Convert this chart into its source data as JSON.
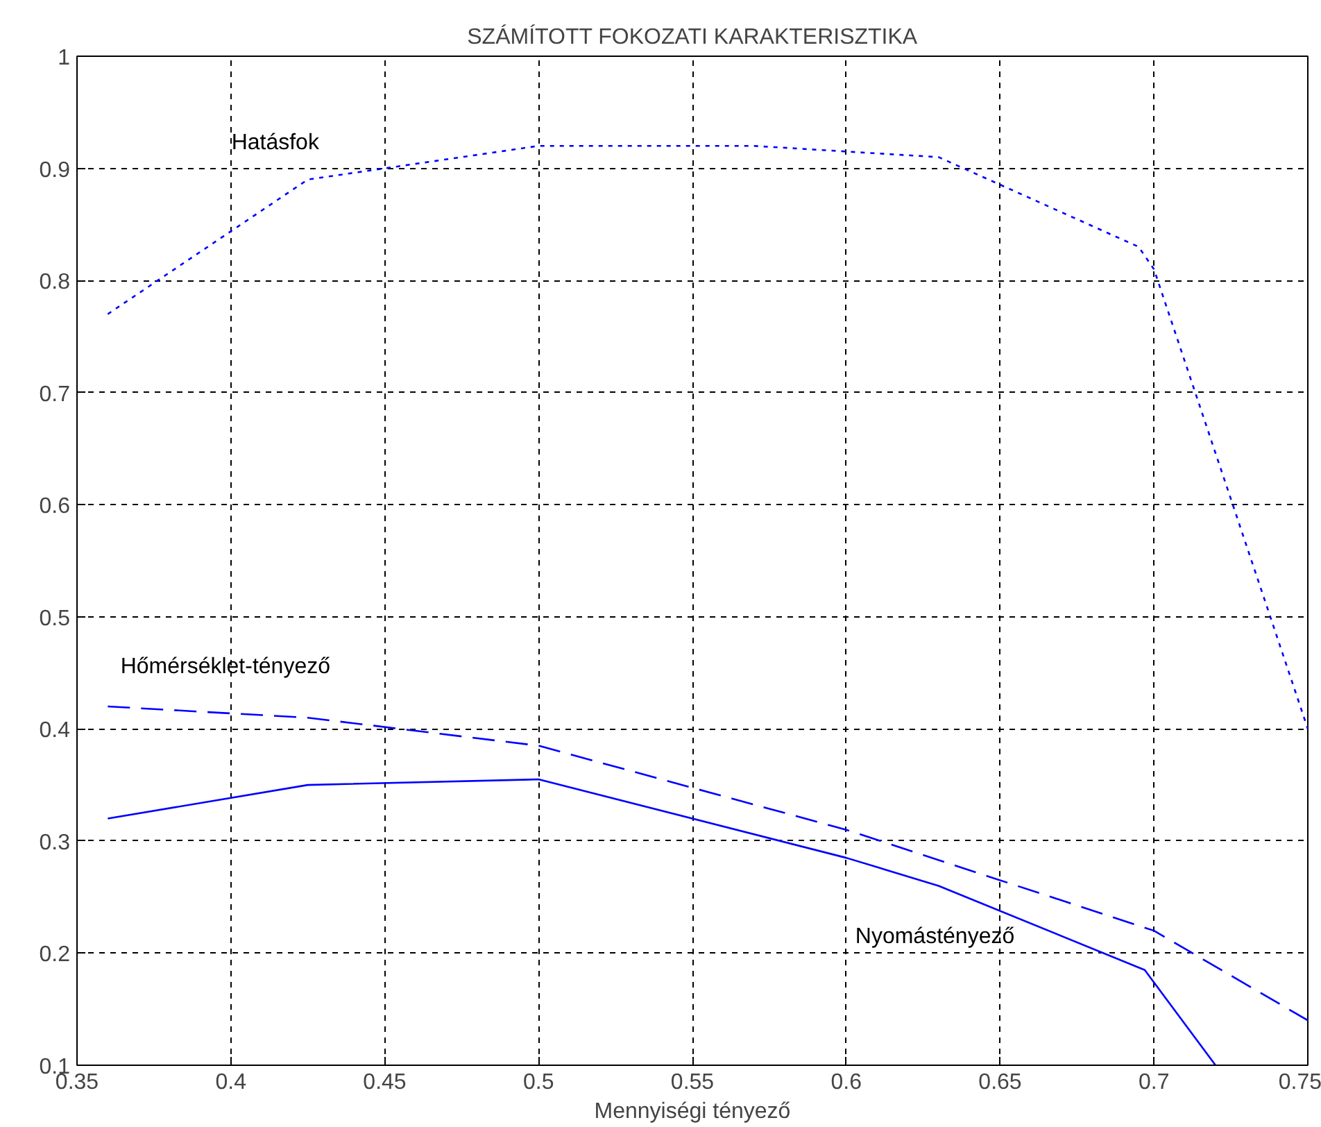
{
  "chart_data": {
    "type": "line",
    "title": "SZÁMÍTOTT FOKOZATI KARAKTERISZTIKA",
    "xlabel": "Mennyiségi tényező",
    "xlim": [
      0.35,
      0.75
    ],
    "ylim": [
      0.1,
      1
    ],
    "xticks": [
      0.35,
      0.4,
      0.45,
      0.5,
      0.55,
      0.6,
      0.65,
      0.7,
      0.75
    ],
    "yticks": [
      0.1,
      0.2,
      0.3,
      0.4,
      0.5,
      0.6,
      0.7,
      0.8,
      0.9,
      1
    ],
    "grid": true,
    "legend": false,
    "marker": "none",
    "series": [
      {
        "name": "Hatásfok",
        "color": "#0000ff",
        "line_style": "dotted",
        "x": [
          0.36,
          0.425,
          0.5,
          0.57,
          0.63,
          0.695,
          0.7,
          0.75
        ],
        "values": [
          0.77,
          0.89,
          0.92,
          0.92,
          0.91,
          0.83,
          0.81,
          0.4
        ]
      },
      {
        "name": "Hőmérséklet-tényező",
        "color": "#0000ff",
        "line_style": "dashed",
        "x": [
          0.36,
          0.425,
          0.5,
          0.6,
          0.7,
          0.75
        ],
        "values": [
          0.42,
          0.41,
          0.385,
          0.31,
          0.22,
          0.14
        ]
      },
      {
        "name": "Nyomástényező",
        "color": "#0000ff",
        "line_style": "solid",
        "x": [
          0.36,
          0.425,
          0.5,
          0.6,
          0.63,
          0.697,
          0.72
        ],
        "values": [
          0.32,
          0.35,
          0.355,
          0.285,
          0.26,
          0.185,
          0.1
        ]
      }
    ]
  }
}
